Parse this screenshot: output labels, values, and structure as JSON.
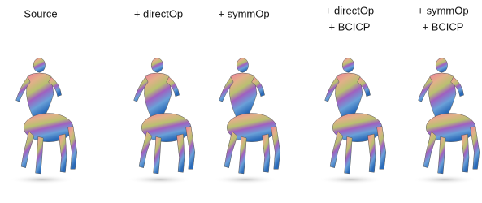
{
  "panels": [
    {
      "label": [
        "Source"
      ]
    },
    {
      "label": [
        "+ directOp"
      ]
    },
    {
      "label": [
        "+ symmOp"
      ]
    },
    {
      "label": [
        "+ directOp",
        "+ BCICP"
      ]
    },
    {
      "label": [
        "+ symmOp",
        "+ BCICP"
      ]
    }
  ]
}
